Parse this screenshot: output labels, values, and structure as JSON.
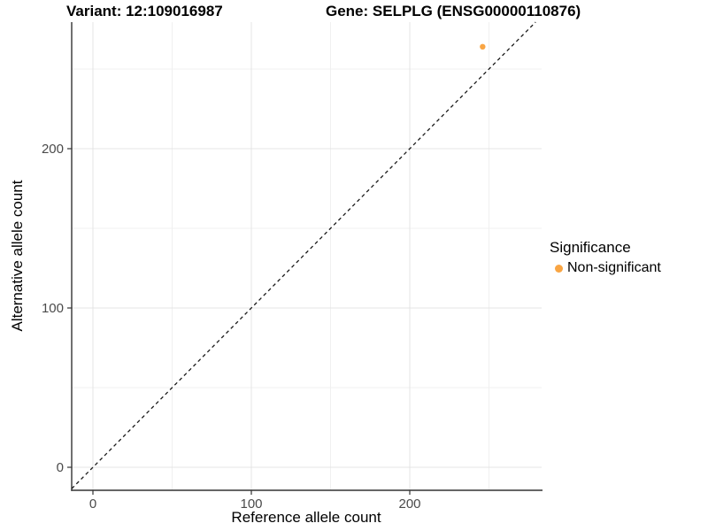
{
  "titles": {
    "left": "Variant: 12:109016987",
    "right": "Gene: SELPLG (ENSG00000110876)"
  },
  "chart_data": {
    "type": "scatter",
    "title_left": "Variant: 12:109016987",
    "title_right": "Gene: SELPLG (ENSG00000110876)",
    "xlabel": "Reference allele count",
    "ylabel": "Alternative allele count",
    "xlim": [
      -14,
      287
    ],
    "ylim": [
      -14,
      280
    ],
    "x_ticks": [
      0,
      100,
      200
    ],
    "y_ticks": [
      0,
      100,
      200
    ],
    "x_minor_ticks": [
      50,
      150,
      250
    ],
    "y_minor_ticks": [
      50,
      150,
      250
    ],
    "grid": true,
    "reference_line": {
      "type": "identity y=x",
      "style": "dashed",
      "color": "#1a1a1a"
    },
    "points": [
      {
        "x": 246,
        "y": 264,
        "series": "Non-significant"
      }
    ],
    "legend": {
      "title": "Significance",
      "position": "right",
      "entries": [
        {
          "label": "Non-significant",
          "color": "#F9A543"
        }
      ]
    }
  },
  "style_colors": {
    "grid_major": "#e4e4e4",
    "grid_minor": "#f0f0f0",
    "axis_line": "#333333",
    "tick_label": "#4a4a4a",
    "point": "#F9A543"
  }
}
